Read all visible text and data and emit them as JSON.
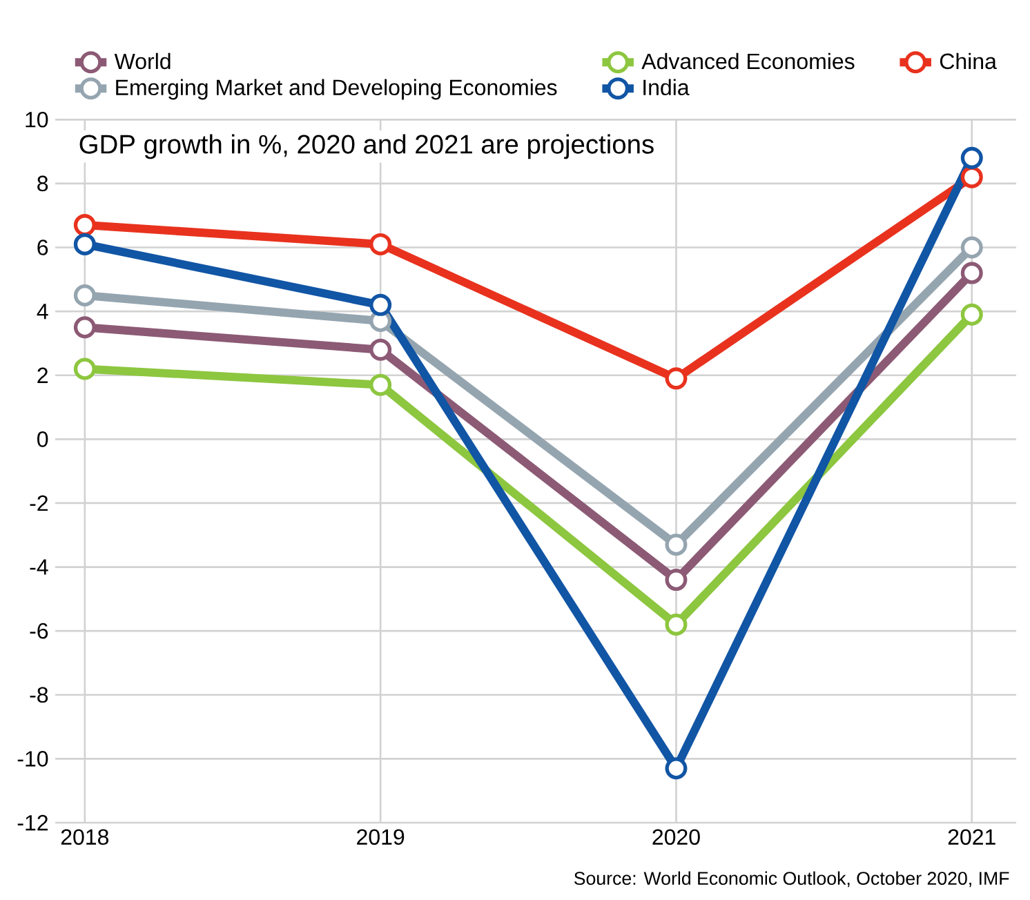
{
  "chart_data": {
    "type": "line",
    "categories": [
      "2018",
      "2019",
      "2020",
      "2021"
    ],
    "series": [
      {
        "name": "World",
        "color": "#8c5a75",
        "values": [
          3.5,
          2.8,
          -4.4,
          5.2
        ]
      },
      {
        "name": "Advanced Economies",
        "color": "#8dc63f",
        "values": [
          2.2,
          1.7,
          -5.8,
          3.9
        ]
      },
      {
        "name": "China",
        "color": "#e8321e",
        "values": [
          6.7,
          6.1,
          1.9,
          8.2
        ]
      },
      {
        "name": "Emerging Market and Developing Economies",
        "color": "#95a5b0",
        "values": [
          4.5,
          3.7,
          -3.3,
          6.0
        ]
      },
      {
        "name": "India",
        "color": "#1155a5",
        "values": [
          6.1,
          4.2,
          -10.3,
          8.8
        ]
      }
    ],
    "ylim": [
      -12,
      10
    ],
    "yticks": [
      -12,
      -10,
      -8,
      -6,
      -4,
      -2,
      0,
      2,
      4,
      6,
      8,
      10
    ],
    "grid": true,
    "legend": "top",
    "marker": "circle",
    "line_style": "solid",
    "annotations": [
      "GDP growth in %, 2020 and 2021 are projections",
      "Source: World Economic Outlook, October 2020, IMF"
    ]
  }
}
